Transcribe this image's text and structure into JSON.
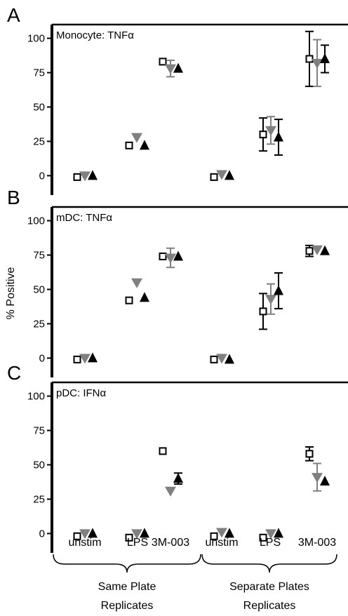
{
  "colors": {
    "series1_stroke": "#000000",
    "series1_fill": "#ffffff",
    "series2": "#808080",
    "series3": "#000000"
  },
  "ylabel": "% Positive",
  "categories": [
    "unstim",
    "LPS",
    "3M-003",
    "unstim",
    "LPS",
    "3M-003"
  ],
  "groups": [
    {
      "lines": [
        "Same Plate",
        "Replicates"
      ]
    },
    {
      "lines": [
        "Separate Plates",
        "Replicates"
      ]
    }
  ],
  "chart_data": [
    {
      "type": "scatter",
      "panel_letter": "A",
      "title": "Monocyte: TNFα",
      "ylim": [
        -10,
        110
      ],
      "yticks": [
        0,
        25,
        50,
        75,
        100
      ],
      "categories": [
        "unstim",
        "LPS",
        "3M-003",
        "unstim",
        "LPS",
        "3M-003"
      ],
      "series": [
        {
          "marker": "open-square",
          "values": [
            -1,
            22,
            83,
            -1,
            30,
            85
          ],
          "err": [
            0,
            0,
            0,
            0,
            12,
            20
          ]
        },
        {
          "marker": "down-triangle",
          "values": [
            0,
            28,
            78,
            1,
            33,
            82
          ],
          "err": [
            0,
            0,
            6,
            0,
            10,
            17
          ]
        },
        {
          "marker": "up-triangle",
          "values": [
            0,
            22,
            78,
            0,
            28,
            85
          ],
          "err": [
            0,
            0,
            0,
            0,
            13,
            10
          ]
        }
      ]
    },
    {
      "type": "scatter",
      "panel_letter": "B",
      "title": "mDC: TNFα",
      "ylim": [
        -10,
        110
      ],
      "yticks": [
        0,
        25,
        50,
        75,
        100
      ],
      "categories": [
        "unstim",
        "LPS",
        "3M-003",
        "unstim",
        "LPS",
        "3M-003"
      ],
      "series": [
        {
          "marker": "open-square",
          "values": [
            -1,
            42,
            74,
            -1,
            34,
            78
          ],
          "err": [
            0,
            0,
            0,
            0,
            13,
            4
          ]
        },
        {
          "marker": "down-triangle",
          "values": [
            0,
            55,
            73,
            0,
            43,
            79
          ],
          "err": [
            0,
            0,
            7,
            0,
            11,
            0
          ]
        },
        {
          "marker": "up-triangle",
          "values": [
            0,
            44,
            74,
            -1,
            49,
            78
          ],
          "err": [
            0,
            0,
            0,
            0,
            13,
            0
          ]
        }
      ]
    },
    {
      "type": "scatter",
      "panel_letter": "C",
      "title": "pDC: IFNα",
      "ylim": [
        -10,
        110
      ],
      "yticks": [
        0,
        25,
        50,
        75,
        100
      ],
      "categories": [
        "unstim",
        "LPS",
        "3M-003",
        "unstim",
        "LPS",
        "3M-003"
      ],
      "series": [
        {
          "marker": "open-square",
          "values": [
            -2,
            -3,
            60,
            -2,
            -3,
            58
          ],
          "err": [
            0,
            0,
            0,
            0,
            0,
            5
          ]
        },
        {
          "marker": "down-triangle",
          "values": [
            0,
            0,
            31,
            1,
            0,
            41
          ],
          "err": [
            0,
            0,
            0,
            0,
            0,
            10
          ]
        },
        {
          "marker": "up-triangle",
          "values": [
            0,
            0,
            40,
            0,
            0,
            38
          ],
          "err": [
            0,
            0,
            4,
            0,
            0,
            0
          ]
        }
      ]
    }
  ]
}
